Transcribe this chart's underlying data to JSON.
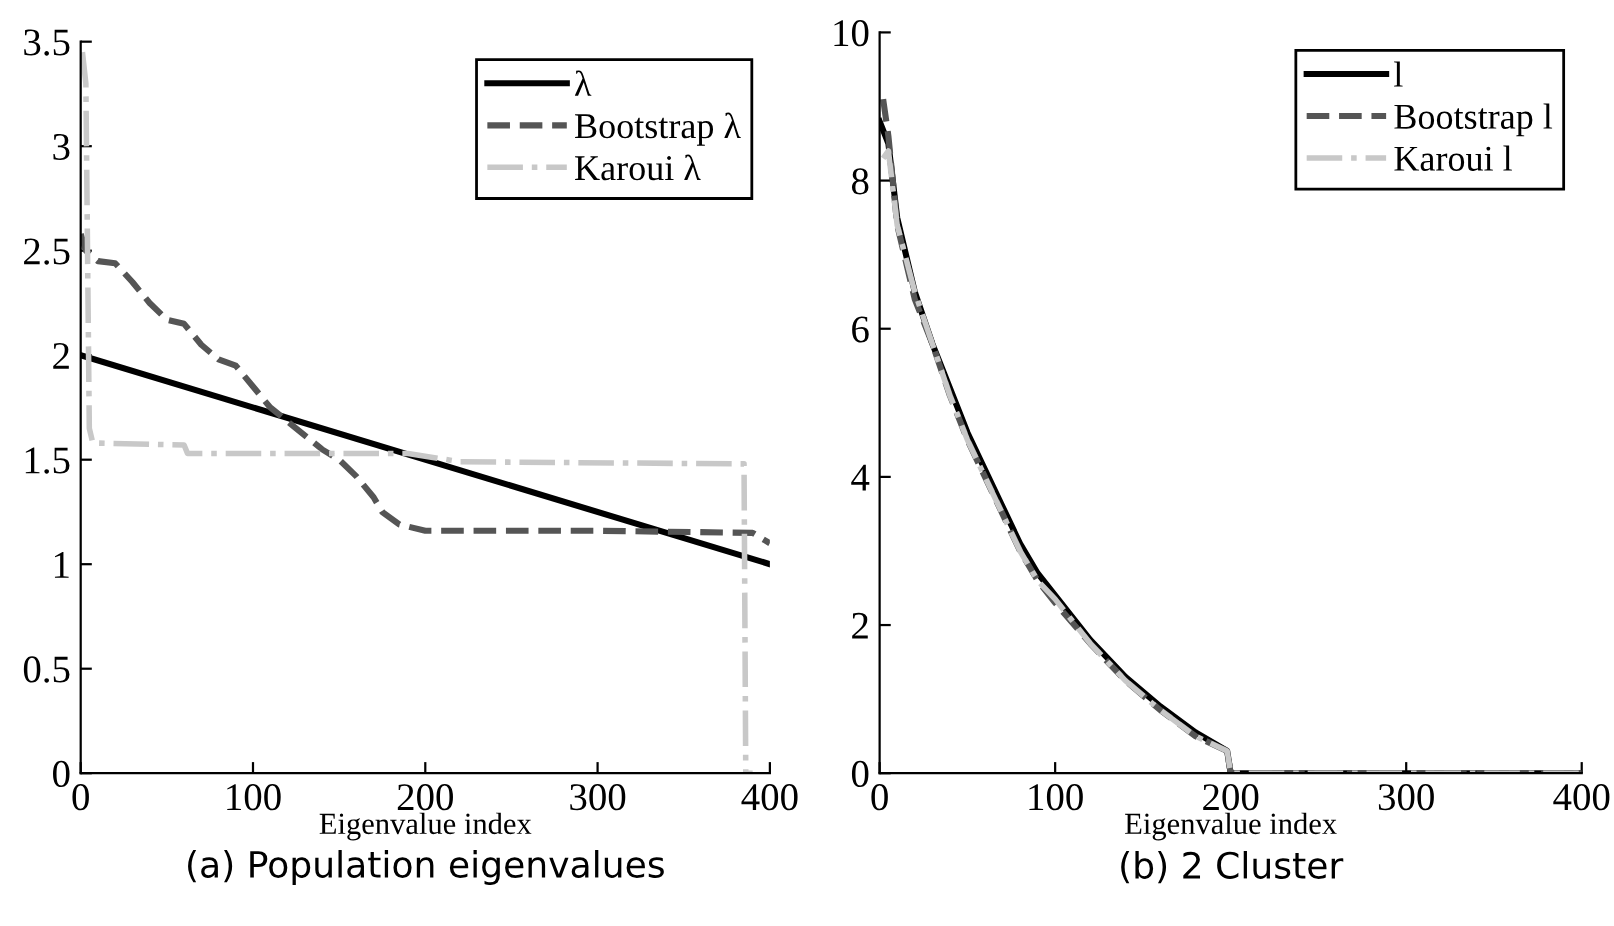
{
  "chart_data": [
    {
      "type": "line",
      "xlabel": "Eigenvalue index",
      "annotations": [
        "(a) Population eigenvalues"
      ],
      "xlim": [
        0,
        400
      ],
      "ylim": [
        0,
        3.5
      ],
      "xticks": [
        0,
        100,
        200,
        300,
        400
      ],
      "yticks": [
        0,
        0.5,
        1,
        1.5,
        2,
        2.5,
        3,
        3.5
      ],
      "legend": "top right",
      "grid": false,
      "series": [
        {
          "name": "λ",
          "color": "#000000",
          "line_style": "solid",
          "x": [
            0,
            400
          ],
          "values": [
            2,
            1
          ]
        },
        {
          "name": "Bootstrap λ",
          "color": "#555555",
          "line_style": "dashed",
          "x": [
            0,
            3,
            10,
            20,
            30,
            40,
            50,
            60,
            70,
            80,
            90,
            100,
            110,
            125,
            140,
            150,
            160,
            170,
            175,
            185,
            200,
            300,
            390,
            400
          ],
          "values": [
            2.58,
            2.5,
            2.45,
            2.44,
            2.35,
            2.25,
            2.17,
            2.15,
            2.05,
            1.98,
            1.95,
            1.85,
            1.75,
            1.65,
            1.55,
            1.5,
            1.42,
            1.32,
            1.25,
            1.19,
            1.16,
            1.16,
            1.15,
            1.1
          ]
        },
        {
          "name": "Karoui λ",
          "color": "#c8c8c8",
          "line_style": "dashdot",
          "x": [
            1,
            3,
            5,
            7,
            60,
            62,
            190,
            220,
            385,
            386,
            390
          ],
          "values": [
            3.45,
            3.3,
            1.65,
            1.58,
            1.57,
            1.53,
            1.53,
            1.49,
            1.48,
            0,
            0
          ]
        }
      ]
    },
    {
      "type": "line",
      "xlabel": "Eigenvalue index",
      "annotations": [
        "(b) 2 Cluster"
      ],
      "xlim": [
        0,
        400
      ],
      "ylim": [
        0,
        10
      ],
      "xticks": [
        0,
        100,
        200,
        300,
        400
      ],
      "yticks": [
        0,
        2,
        4,
        6,
        8,
        10
      ],
      "legend": "top right",
      "grid": false,
      "series": [
        {
          "name": "l",
          "color": "#000000",
          "line_style": "solid",
          "x": [
            0,
            5,
            10,
            20,
            30,
            40,
            50,
            60,
            70,
            80,
            90,
            100,
            120,
            140,
            160,
            180,
            198,
            200,
            400
          ],
          "values": [
            8.8,
            8.5,
            7.5,
            6.5,
            5.8,
            5.2,
            4.6,
            4.1,
            3.6,
            3.1,
            2.7,
            2.4,
            1.8,
            1.3,
            0.9,
            0.55,
            0.3,
            0,
            0
          ]
        },
        {
          "name": "Bootstrap l",
          "color": "#555555",
          "line_style": "dashed",
          "x": [
            2,
            5,
            10,
            20,
            30,
            40,
            50,
            60,
            70,
            80,
            90,
            100,
            120,
            140,
            160,
            180,
            198,
            200,
            400
          ],
          "values": [
            9.1,
            8.6,
            7.4,
            6.4,
            5.8,
            5.1,
            4.5,
            4.0,
            3.5,
            3.0,
            2.6,
            2.3,
            1.75,
            1.25,
            0.85,
            0.5,
            0.3,
            0,
            0
          ]
        },
        {
          "name": "Karoui l",
          "color": "#c8c8c8",
          "line_style": "dashdot",
          "x": [
            2,
            5,
            10,
            20,
            30,
            40,
            50,
            60,
            70,
            80,
            90,
            100,
            120,
            140,
            160,
            180,
            198,
            200,
            400
          ],
          "values": [
            8.3,
            8.4,
            7.4,
            6.5,
            5.8,
            5.1,
            4.5,
            4.0,
            3.5,
            3.0,
            2.6,
            2.35,
            1.75,
            1.25,
            0.85,
            0.5,
            0.3,
            0,
            0
          ]
        }
      ]
    }
  ]
}
